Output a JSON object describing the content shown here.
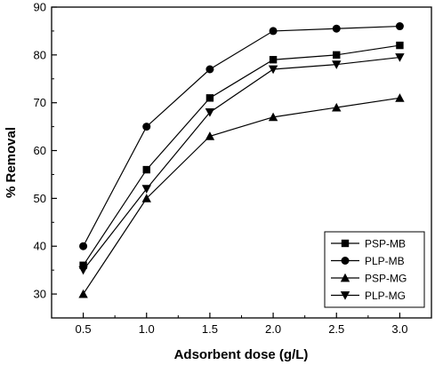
{
  "chart_data": {
    "type": "line",
    "xlabel": "Adsorbent dose (g/L)",
    "ylabel": "% Removal",
    "x": [
      0.5,
      1.0,
      1.5,
      2.0,
      2.5,
      3.0
    ],
    "x_tick_labels": [
      "0.5",
      "1.0",
      "1.5",
      "2.0",
      "2.5",
      "3.0"
    ],
    "y_ticks": [
      30,
      40,
      50,
      60,
      70,
      80,
      90
    ],
    "y_tick_labels": [
      "30",
      "40",
      "50",
      "60",
      "70",
      "80",
      "90"
    ],
    "xlim": [
      0.25,
      3.25
    ],
    "ylim": [
      25,
      90
    ],
    "grid": false,
    "legend_position": "bottom-right",
    "series": [
      {
        "name": "PSP-MB",
        "marker": "square",
        "values": [
          36,
          56,
          71,
          79,
          80,
          82
        ]
      },
      {
        "name": "PLP-MB",
        "marker": "circle",
        "values": [
          40,
          65,
          77,
          85,
          85.5,
          86
        ]
      },
      {
        "name": "PSP-MG",
        "marker": "triangle-up",
        "values": [
          30,
          50,
          63,
          67,
          69,
          71
        ]
      },
      {
        "name": "PLP-MG",
        "marker": "triangle-down",
        "values": [
          35,
          52,
          68,
          77,
          78,
          79.5
        ]
      }
    ],
    "colors": {
      "line": "#000000",
      "marker": "#000000"
    }
  }
}
